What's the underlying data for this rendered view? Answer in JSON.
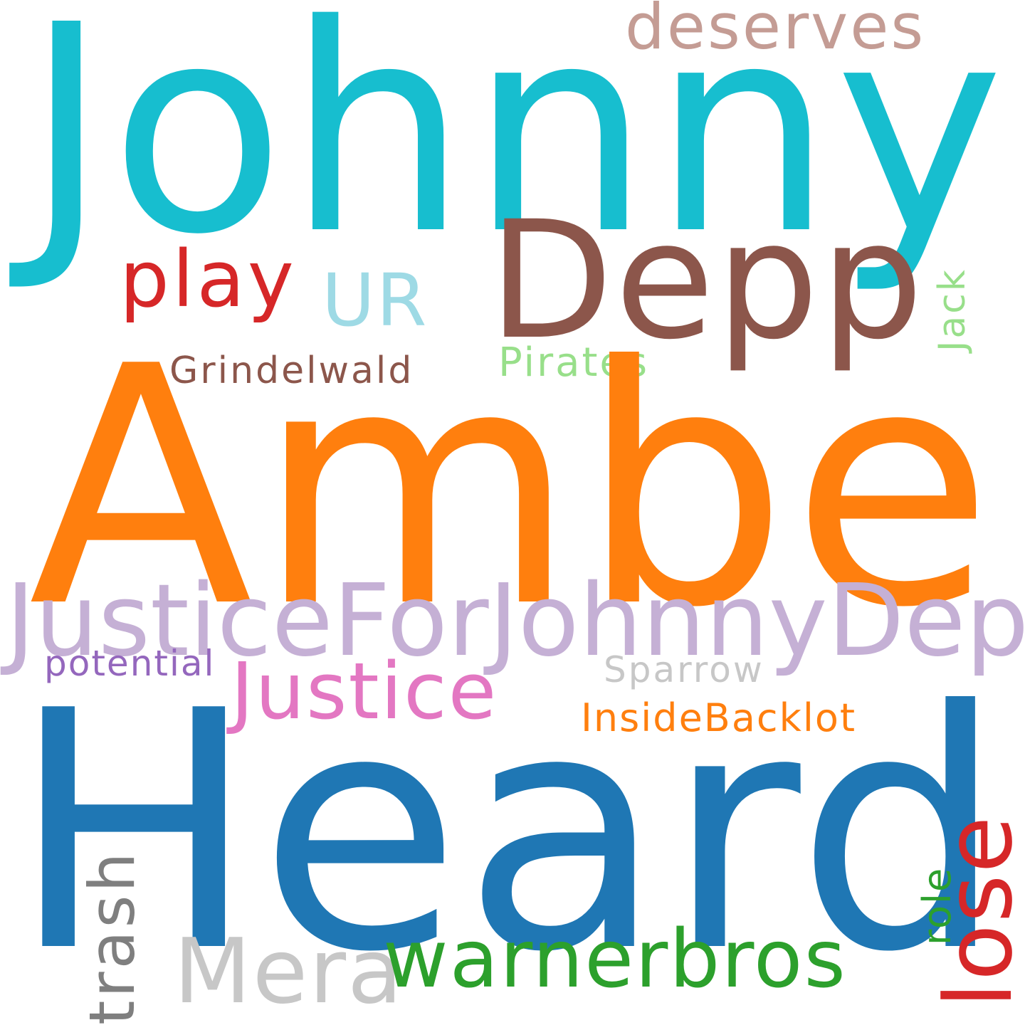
{
  "words": {
    "johnny": "Johnny",
    "amber": "Amber",
    "heard": "Heard",
    "depp": "Depp",
    "justicefor": "JusticeForJohnnyDepp",
    "justice": "Justice",
    "play": "play",
    "ur": "UR",
    "deserves": "deserves",
    "grindelwald": "Grindelwald",
    "pirates": "Pirates",
    "jack": "Jack",
    "potential": "potential",
    "sparrow": "Sparrow",
    "insidebacklot": "InsideBacklot",
    "warnerbros": "warnerbros",
    "mera": "Mera",
    "trash": "trash",
    "lose": "lose",
    "role": "role"
  },
  "colors": {
    "background": "#ffffff",
    "johnny": "#17becf",
    "amber": "#ff7f0e",
    "heard": "#1f77b4",
    "depp": "#8c564b",
    "justicefor": "#c5b0d5",
    "justice": "#e377c2",
    "play": "#d62728",
    "ur": "#9edae5",
    "deserves": "#c49c94",
    "grindelwald": "#8c564b",
    "pirates": "#98df8a",
    "jack": "#98df8a",
    "potential": "#9467bd",
    "sparrow": "#c7c7c7",
    "insidebacklot": "#ff7f0e",
    "warnerbros": "#2ca02c",
    "mera": "#c7c7c7",
    "trash": "#7f7f7f",
    "lose": "#d62728",
    "role": "#2ca02c"
  }
}
